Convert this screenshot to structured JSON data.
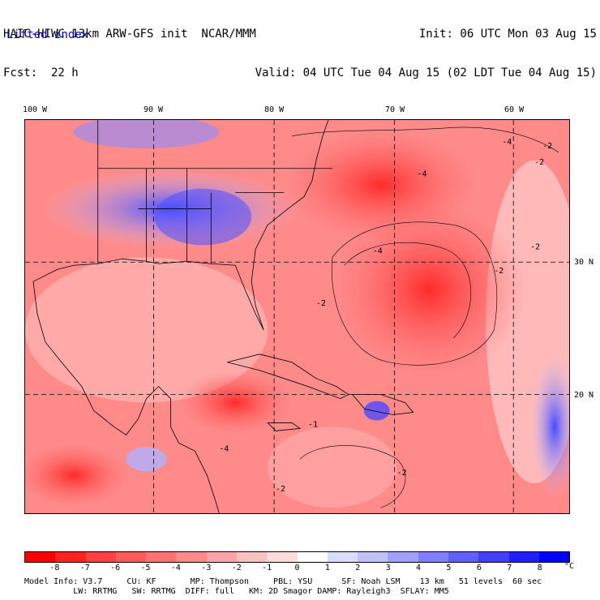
{
  "header": {
    "line1_left": "HAIC-HIWC 13km ARW-GFS init  NCAR/MMM",
    "line2_left": "Fcst:  22 h",
    "line1_right": "Init: 06 UTC Mon 03 Aug 15",
    "line2_right": "Valid: 04 UTC Tue 04 Aug 15 (02 LDT Tue 04 Aug 15)",
    "field": "Lifted index"
  },
  "map": {
    "lon_labels": [
      "100 W",
      "90 W",
      "80 W",
      "70 W",
      "60 W"
    ],
    "lat_labels": [
      "30 N",
      "20 N"
    ],
    "contour_labels": [
      "-4",
      "-2",
      "-4",
      "-2",
      "-4",
      "-2",
      "-2",
      "-2",
      "-1",
      "-2",
      "-4",
      "-2"
    ]
  },
  "colorbar": {
    "ticks": [
      "-8",
      "-7",
      "-6",
      "-5",
      "-4",
      "-3",
      "-2",
      "-1",
      "0",
      "1",
      "2",
      "3",
      "4",
      "5",
      "6",
      "7",
      "8"
    ],
    "unit": "°C",
    "colors": [
      "#ff0000",
      "#ff2020",
      "#ff4040",
      "#ff5a5a",
      "#ff7272",
      "#ff8a8a",
      "#ffa4a4",
      "#ffc0c0",
      "#ffdcdc",
      "#ffffff",
      "#dcdcff",
      "#c0c0ff",
      "#a0a0ff",
      "#8080ff",
      "#6060ff",
      "#4040ff",
      "#2020ff",
      "#0000ff"
    ]
  },
  "info": {
    "line1": "Model Info: V3.7     CU: KF       MP: Thompson     PBL: YSU      SF: Noah LSM    13 km   51 levels  60 sec",
    "line2": "          LW: RRTMG   SW: RRTMG  DIFF: full   KM: 2D Smagor DAMP: Rayleigh3  SFLAY: MM5"
  }
}
